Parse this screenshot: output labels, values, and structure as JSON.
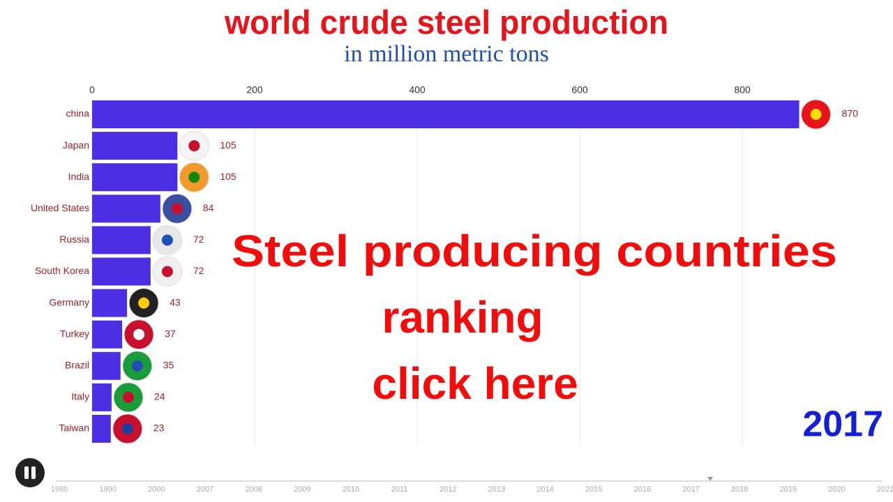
{
  "chart_data": {
    "type": "bar",
    "orientation": "horizontal",
    "title": "world crude steel production",
    "subtitle": "in million metric tons",
    "categories": [
      "china",
      "Japan",
      "India",
      "United States",
      "Russia",
      "South Korea",
      "Germany",
      "Turkey",
      "Brazil",
      "Italy",
      "Taiwan"
    ],
    "values": [
      870,
      105,
      105,
      84,
      72,
      72,
      43,
      37,
      35,
      24,
      23
    ],
    "color": "#4a2fe3",
    "xlim": [
      0,
      950
    ],
    "xticks": [
      0,
      200,
      400,
      600,
      800
    ],
    "grid": true,
    "year": "2017"
  },
  "overlay": {
    "lines": [
      "Steel producing countries",
      "ranking",
      "click here"
    ]
  },
  "timeline": {
    "labels": [
      "1980",
      "1990",
      "2000",
      "2007",
      "2008",
      "2009",
      "2010",
      "2011",
      "2012",
      "2013",
      "2014",
      "2015",
      "2016",
      "2017",
      "2018",
      "2019",
      "2020",
      "2021"
    ]
  }
}
